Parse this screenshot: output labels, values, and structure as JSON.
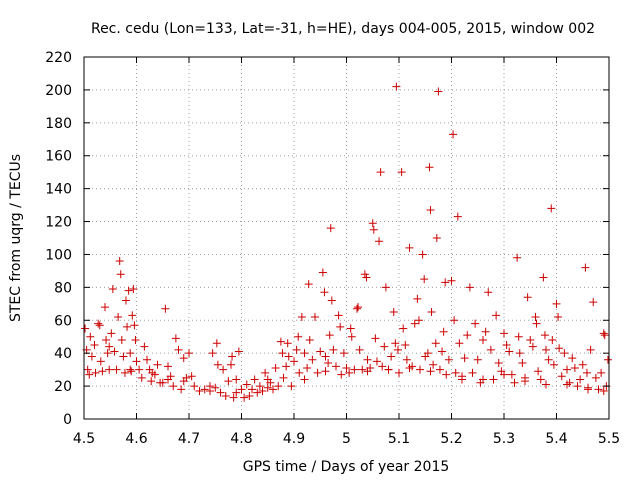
{
  "chart_data": {
    "type": "scatter",
    "title": "Rec. cedu (Lon=133, Lat=-31, h=HE), days 004-005, 2015, window 002",
    "xlabel": "GPS time / Days of year 2015",
    "ylabel": "STEC from uqrg / TECUs",
    "xlim": [
      4.5,
      5.5
    ],
    "ylim": [
      0,
      220
    ],
    "xticks": [
      4.5,
      4.6,
      4.7,
      4.8,
      4.9,
      5,
      5.1,
      5.2,
      5.3,
      5.4,
      5.5
    ],
    "xtick_labels": [
      "4.5",
      "4.6",
      "4.7",
      "4.8",
      "4.9",
      "5",
      "5.1",
      "5.2",
      "5.3",
      "5.4",
      "5.5"
    ],
    "yticks": [
      0,
      20,
      40,
      60,
      80,
      100,
      120,
      140,
      160,
      180,
      200,
      220
    ],
    "ytick_labels": [
      "0",
      "20",
      "40",
      "60",
      "80",
      "100",
      "120",
      "140",
      "160",
      "180",
      "200",
      "220"
    ],
    "grid": true,
    "marker": "+",
    "color": "#cc0000",
    "series": [
      {
        "name": "STEC",
        "points": [
          [
            4.502,
            55
          ],
          [
            4.505,
            42
          ],
          [
            4.507,
            30
          ],
          [
            4.51,
            27
          ],
          [
            4.515,
            38
          ],
          [
            4.52,
            45
          ],
          [
            4.522,
            28
          ],
          [
            4.527,
            58
          ],
          [
            4.53,
            57
          ],
          [
            4.532,
            35
          ],
          [
            4.535,
            29
          ],
          [
            4.54,
            68
          ],
          [
            4.542,
            48
          ],
          [
            4.545,
            40
          ],
          [
            4.548,
            30
          ],
          [
            4.552,
            52
          ],
          [
            4.555,
            79
          ],
          [
            4.558,
            41
          ],
          [
            4.562,
            30
          ],
          [
            4.565,
            62
          ],
          [
            4.568,
            96
          ],
          [
            4.57,
            88
          ],
          [
            4.572,
            48
          ],
          [
            4.575,
            38
          ],
          [
            4.578,
            28
          ],
          [
            4.58,
            72
          ],
          [
            4.582,
            56
          ],
          [
            4.585,
            78
          ],
          [
            4.588,
            40
          ],
          [
            4.59,
            29
          ],
          [
            4.592,
            63
          ],
          [
            4.594,
            79
          ],
          [
            4.596,
            57
          ],
          [
            4.598,
            48
          ],
          [
            4.6,
            35
          ],
          [
            4.605,
            30
          ],
          [
            4.61,
            25
          ],
          [
            4.615,
            44
          ],
          [
            4.62,
            36
          ],
          [
            4.625,
            30
          ],
          [
            4.628,
            23
          ],
          [
            4.635,
            27
          ],
          [
            4.64,
            33
          ],
          [
            4.645,
            22
          ],
          [
            4.65,
            22
          ],
          [
            4.655,
            67
          ],
          [
            4.66,
            32
          ],
          [
            4.665,
            26
          ],
          [
            4.67,
            20
          ],
          [
            4.675,
            49
          ],
          [
            4.68,
            42
          ],
          [
            4.685,
            18
          ],
          [
            4.69,
            37
          ],
          [
            4.695,
            25
          ],
          [
            4.7,
            40
          ],
          [
            4.705,
            26
          ],
          [
            4.71,
            20
          ],
          [
            4.72,
            17
          ],
          [
            4.73,
            18
          ],
          [
            4.74,
            20
          ],
          [
            4.745,
            40
          ],
          [
            4.75,
            19
          ],
          [
            4.753,
            46
          ],
          [
            4.755,
            33
          ],
          [
            4.76,
            16
          ],
          [
            4.765,
            30
          ],
          [
            4.77,
            14
          ],
          [
            4.775,
            23
          ],
          [
            4.78,
            33
          ],
          [
            4.782,
            38
          ],
          [
            4.785,
            13
          ],
          [
            4.79,
            24
          ],
          [
            4.795,
            41
          ],
          [
            4.8,
            18
          ],
          [
            4.805,
            13
          ],
          [
            4.81,
            21
          ],
          [
            4.815,
            14
          ],
          [
            4.82,
            18
          ],
          [
            4.825,
            24
          ],
          [
            4.83,
            16
          ],
          [
            4.835,
            20
          ],
          [
            4.84,
            17
          ],
          [
            4.845,
            28
          ],
          [
            4.85,
            19
          ],
          [
            4.855,
            22
          ],
          [
            4.86,
            18
          ],
          [
            4.865,
            31
          ],
          [
            4.87,
            20
          ],
          [
            4.875,
            47
          ],
          [
            4.878,
            40
          ],
          [
            4.88,
            25
          ],
          [
            4.885,
            32
          ],
          [
            4.888,
            46
          ],
          [
            4.89,
            38
          ],
          [
            4.895,
            20
          ],
          [
            4.9,
            35
          ],
          [
            4.905,
            42
          ],
          [
            4.908,
            50
          ],
          [
            4.91,
            28
          ],
          [
            4.915,
            62
          ],
          [
            4.92,
            40
          ],
          [
            4.925,
            31
          ],
          [
            4.928,
            82
          ],
          [
            4.93,
            48
          ],
          [
            4.935,
            36
          ],
          [
            4.94,
            62
          ],
          [
            4.945,
            28
          ],
          [
            4.95,
            41
          ],
          [
            4.955,
            89
          ],
          [
            4.958,
            77
          ],
          [
            4.96,
            38
          ],
          [
            4.965,
            34
          ],
          [
            4.968,
            51
          ],
          [
            4.97,
            116
          ],
          [
            4.972,
            72
          ],
          [
            4.975,
            42
          ],
          [
            4.98,
            32
          ],
          [
            4.985,
            63
          ],
          [
            4.988,
            56
          ],
          [
            4.99,
            27
          ],
          [
            4.995,
            40
          ],
          [
            5.005,
            28
          ],
          [
            5.008,
            55
          ],
          [
            5.01,
            50
          ],
          [
            5.015,
            30
          ],
          [
            5.02,
            67
          ],
          [
            5.022,
            68
          ],
          [
            5.025,
            42
          ],
          [
            5.03,
            30
          ],
          [
            5.035,
            88
          ],
          [
            5.038,
            86
          ],
          [
            5.04,
            36
          ],
          [
            5.045,
            31
          ],
          [
            5.05,
            119
          ],
          [
            5.052,
            115
          ],
          [
            5.055,
            49
          ],
          [
            5.058,
            35
          ],
          [
            5.062,
            108
          ],
          [
            5.065,
            150
          ],
          [
            5.068,
            32
          ],
          [
            5.072,
            44
          ],
          [
            5.075,
            80
          ],
          [
            5.08,
            30
          ],
          [
            5.085,
            38
          ],
          [
            5.09,
            65
          ],
          [
            5.093,
            46
          ],
          [
            5.095,
            202
          ],
          [
            5.098,
            42
          ],
          [
            5.1,
            28
          ],
          [
            5.105,
            150
          ],
          [
            5.108,
            55
          ],
          [
            5.112,
            45
          ],
          [
            5.115,
            36
          ],
          [
            5.12,
            104
          ],
          [
            5.125,
            32
          ],
          [
            5.13,
            58
          ],
          [
            5.135,
            73
          ],
          [
            5.138,
            60
          ],
          [
            5.14,
            30
          ],
          [
            5.145,
            100
          ],
          [
            5.148,
            85
          ],
          [
            5.15,
            38
          ],
          [
            5.155,
            40
          ],
          [
            5.158,
            153
          ],
          [
            5.16,
            127
          ],
          [
            5.162,
            65
          ],
          [
            5.165,
            33
          ],
          [
            5.17,
            46
          ],
          [
            5.172,
            110
          ],
          [
            5.175,
            199
          ],
          [
            5.178,
            30
          ],
          [
            5.182,
            41
          ],
          [
            5.185,
            53
          ],
          [
            5.188,
            83
          ],
          [
            5.19,
            27
          ],
          [
            5.195,
            36
          ],
          [
            5.2,
            84
          ],
          [
            5.203,
            173
          ],
          [
            5.205,
            60
          ],
          [
            5.208,
            28
          ],
          [
            5.212,
            123
          ],
          [
            5.215,
            46
          ],
          [
            5.22,
            24
          ],
          [
            5.225,
            37
          ],
          [
            5.23,
            51
          ],
          [
            5.235,
            80
          ],
          [
            5.24,
            28
          ],
          [
            5.245,
            58
          ],
          [
            5.25,
            36
          ],
          [
            5.255,
            22
          ],
          [
            5.26,
            48
          ],
          [
            5.265,
            53
          ],
          [
            5.27,
            77
          ],
          [
            5.275,
            42
          ],
          [
            5.28,
            24
          ],
          [
            5.285,
            63
          ],
          [
            5.29,
            34
          ],
          [
            5.295,
            29
          ],
          [
            5.3,
            52
          ],
          [
            5.305,
            45
          ],
          [
            5.31,
            41
          ],
          [
            5.315,
            27
          ],
          [
            5.32,
            22
          ],
          [
            5.325,
            98
          ],
          [
            5.328,
            50
          ],
          [
            5.33,
            40
          ],
          [
            5.335,
            34
          ],
          [
            5.34,
            25
          ],
          [
            5.345,
            74
          ],
          [
            5.35,
            48
          ],
          [
            5.355,
            44
          ],
          [
            5.36,
            62
          ],
          [
            5.362,
            58
          ],
          [
            5.365,
            29
          ],
          [
            5.37,
            24
          ],
          [
            5.375,
            86
          ],
          [
            5.378,
            51
          ],
          [
            5.38,
            42
          ],
          [
            5.385,
            36
          ],
          [
            5.39,
            128
          ],
          [
            5.392,
            48
          ],
          [
            5.395,
            33
          ],
          [
            5.4,
            70
          ],
          [
            5.403,
            62
          ],
          [
            5.405,
            43
          ],
          [
            5.41,
            26
          ],
          [
            5.415,
            40
          ],
          [
            5.42,
            30
          ],
          [
            5.425,
            22
          ],
          [
            5.43,
            37
          ],
          [
            5.435,
            31
          ],
          [
            5.44,
            20
          ],
          [
            5.445,
            24
          ],
          [
            5.45,
            33
          ],
          [
            5.455,
            92
          ],
          [
            5.458,
            28
          ],
          [
            5.46,
            18
          ],
          [
            5.465,
            42
          ],
          [
            5.47,
            71
          ],
          [
            5.475,
            25
          ],
          [
            5.48,
            18
          ],
          [
            5.485,
            28
          ],
          [
            5.49,
            52
          ],
          [
            5.492,
            51
          ],
          [
            5.495,
            20
          ],
          [
            5.498,
            36
          ],
          [
            4.512,
            50
          ],
          [
            4.548,
            44
          ],
          [
            4.588,
            30
          ],
          [
            4.63,
            28
          ],
          [
            4.66,
            24
          ],
          [
            4.69,
            23
          ],
          [
            4.74,
            17
          ],
          [
            4.79,
            16
          ],
          [
            4.85,
            24
          ],
          [
            4.92,
            24
          ],
          [
            4.96,
            29
          ],
          [
            5.0,
            31
          ],
          [
            5.04,
            29
          ],
          [
            5.08,
            30
          ],
          [
            5.12,
            31
          ],
          [
            5.16,
            29
          ],
          [
            5.22,
            26
          ],
          [
            5.26,
            24
          ],
          [
            5.3,
            27
          ],
          [
            5.34,
            23
          ],
          [
            5.38,
            21
          ],
          [
            5.42,
            21
          ],
          [
            5.46,
            19
          ],
          [
            5.49,
            17
          ]
        ]
      }
    ]
  }
}
